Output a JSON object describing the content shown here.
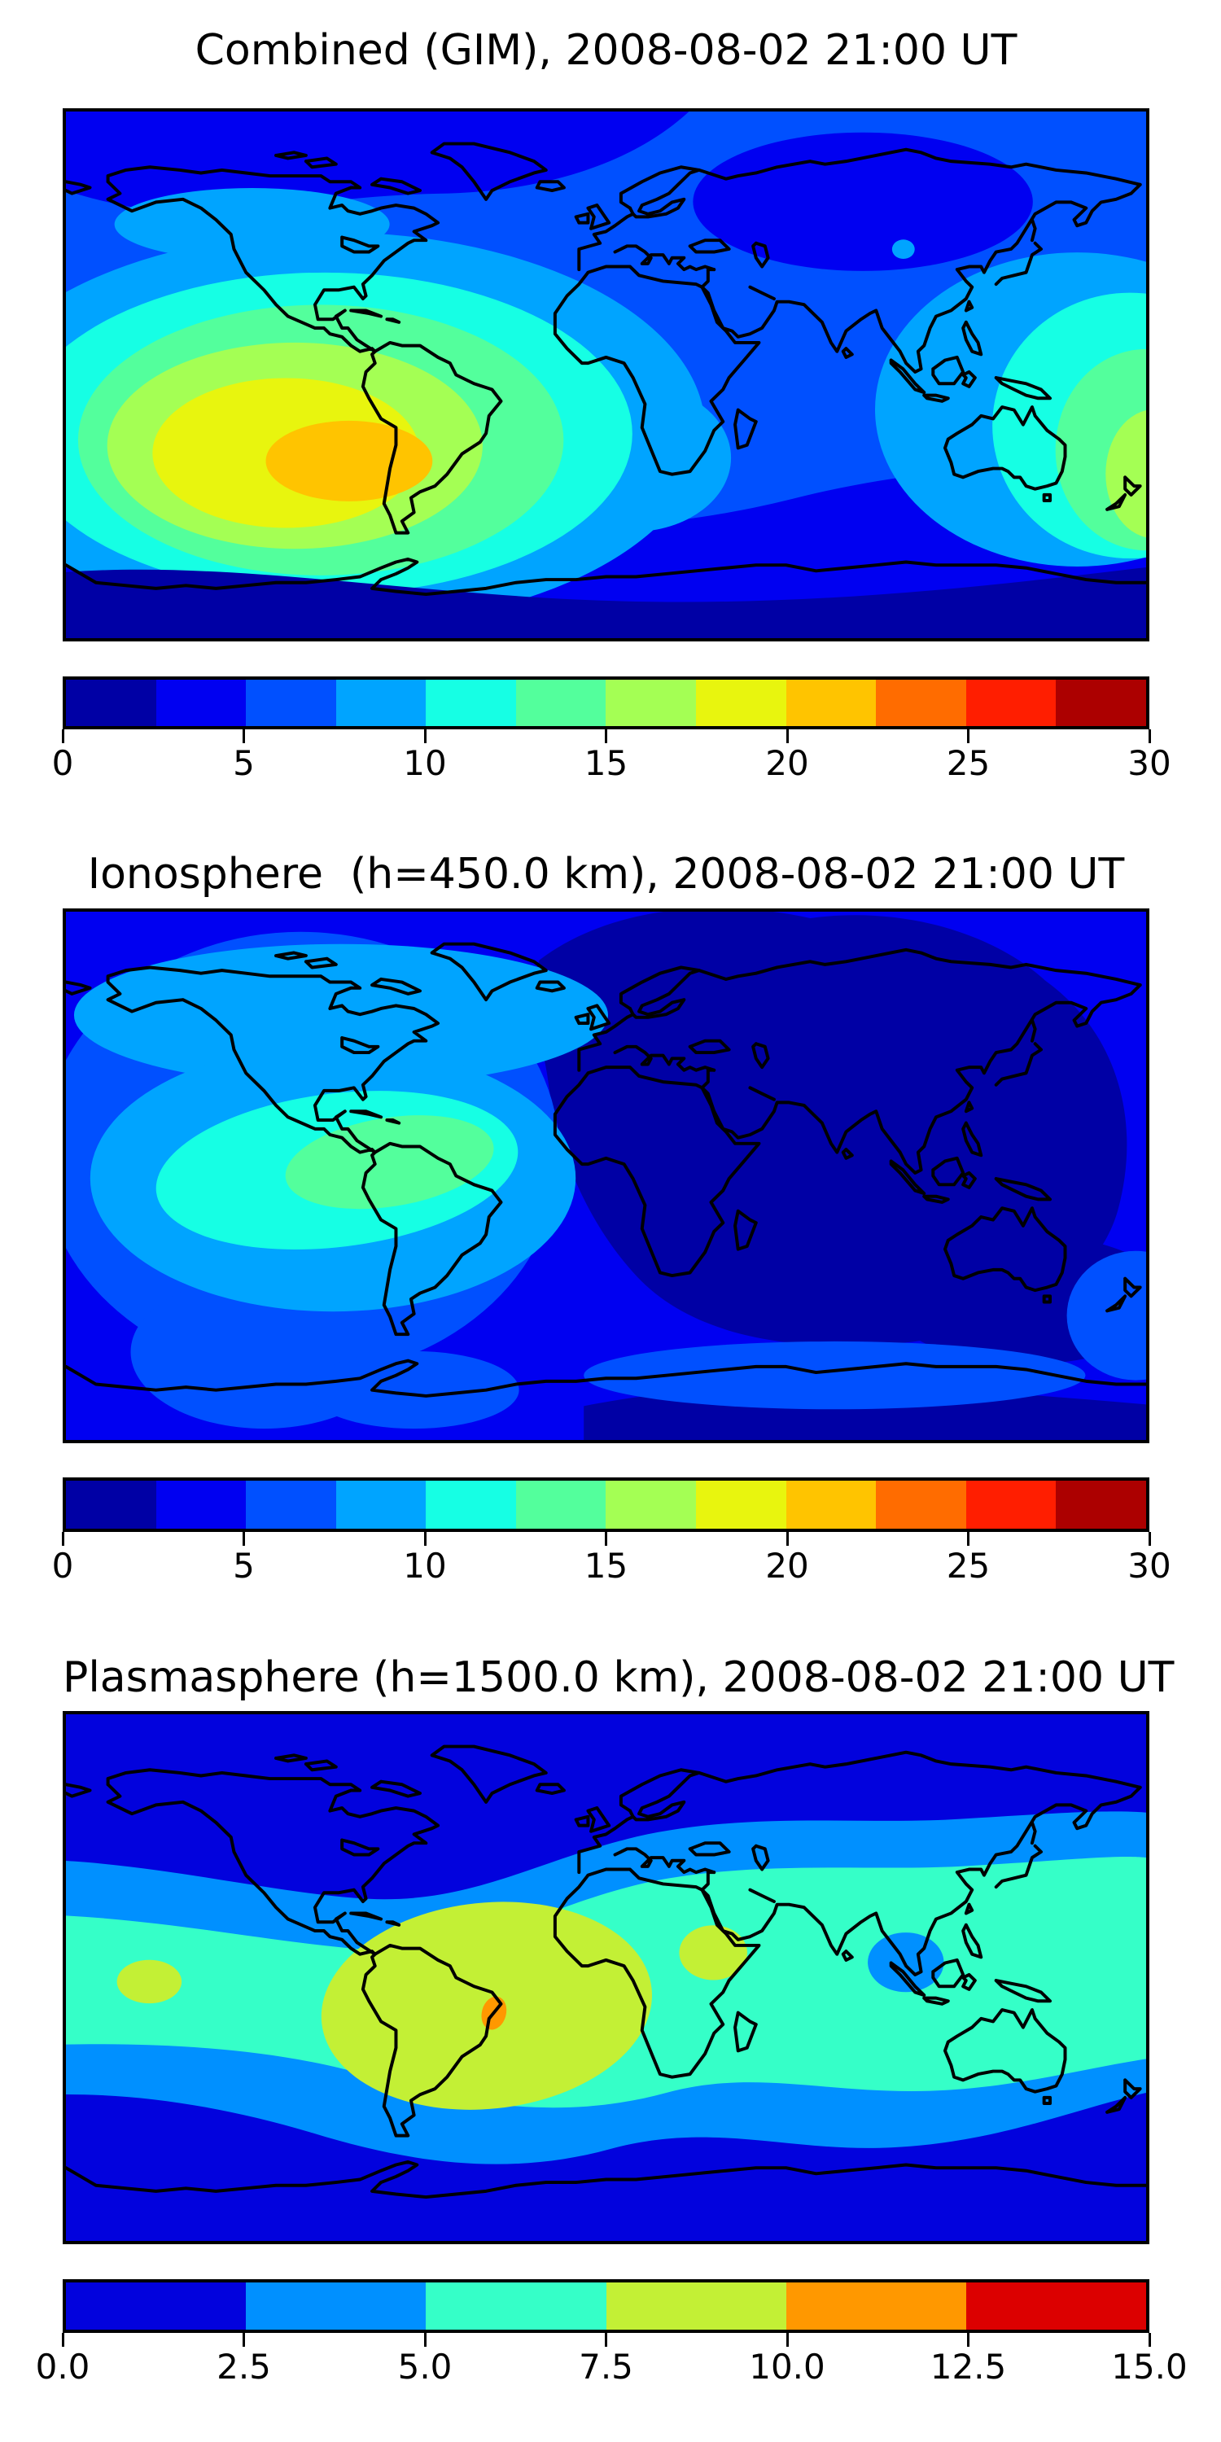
{
  "panels": [
    {
      "title": "Combined (GIM), 2008-08-02 21:00 UT",
      "colorbar": {
        "vmin": 0,
        "vmax": 30,
        "n_bands": 12,
        "tick_labels": [
          "0",
          "5",
          "10",
          "15",
          "20",
          "25",
          "30"
        ],
        "band_colors": [
          "#0000a5",
          "#0000f1",
          "#0050ff",
          "#00a4ff",
          "#16ffe4",
          "#53ff9c",
          "#a4ff54",
          "#e8f50e",
          "#ffc400",
          "#ff6c00",
          "#ff1e00",
          "#ac0000"
        ]
      }
    },
    {
      "title": "Ionosphere  (h=450.0 km), 2008-08-02 21:00 UT",
      "colorbar": {
        "vmin": 0,
        "vmax": 30,
        "n_bands": 12,
        "tick_labels": [
          "0",
          "5",
          "10",
          "15",
          "20",
          "25",
          "30"
        ],
        "band_colors": [
          "#0000a5",
          "#0000f1",
          "#0050ff",
          "#00a4ff",
          "#16ffe4",
          "#53ff9c",
          "#a4ff54",
          "#e8f50e",
          "#ffc400",
          "#ff6c00",
          "#ff1e00",
          "#ac0000"
        ]
      }
    },
    {
      "title": "Plasmasphere (h=1500.0 km), 2008-08-02 21:00 UT",
      "colorbar": {
        "vmin": 0,
        "vmax": 15,
        "n_bands": 6,
        "tick_labels": [
          "0.0",
          "2.5",
          "5.0",
          "7.5",
          "10.0",
          "12.5",
          "15.0"
        ],
        "band_colors": [
          "#0202dd",
          "#0090ff",
          "#35ffc8",
          "#c3f035",
          "#ff9800",
          "#dc0000"
        ]
      }
    }
  ],
  "chart_data": [
    {
      "type": "heatmap",
      "subtype": "filled-contour-world-map",
      "title": "Combined (GIM), 2008-08-02 21:00 UT",
      "projection": "equirectangular",
      "lon_range": [
        -180,
        180
      ],
      "lat_range": [
        -90,
        90
      ],
      "colormap": "jet (discrete, 12 bands)",
      "contour_levels": [
        0,
        2.5,
        5,
        7.5,
        10,
        12.5,
        15,
        17.5,
        20,
        22.5,
        25,
        27.5,
        30
      ],
      "colorbar_ticks": [
        0,
        5,
        10,
        15,
        20,
        25,
        30
      ],
      "legend_position": "horizontal colorbar below map",
      "grid": false,
      "features": [
        {
          "region": "eastern Pacific / Peru-Ecuador sector",
          "lon": -100,
          "lat": -10,
          "value_range": "20-22.5",
          "description": "main daytime hotspot: orange core ringed by yellow (17.5-20), yellow-green (15-17.5), green (12.5-15), cyan (10-12.5) and light blue (7.5-10)"
        },
        {
          "region": "far west Pacific near 180 deg (map edges)",
          "lon": 175,
          "lat": -15,
          "value_range": "15-17.5 max",
          "description": "secondary enhancement with cyan/green rings near both left and right map edges"
        },
        {
          "region": "Siberia / high-latitude Russia",
          "lon": 85,
          "lat": 60,
          "value_range": "2.5-5",
          "description": "dark-blue depleted oval"
        },
        {
          "region": "most of Eurasia and Africa",
          "lon": 40,
          "lat": 20,
          "value_range": "5-7.5",
          "description": "background level"
        },
        {
          "region": "southern high latitudes / Antarctica",
          "lon": 0,
          "lat": -70,
          "value_range": "0-5",
          "description": "dark blue and navy bands across the bottom of the map"
        }
      ]
    },
    {
      "type": "heatmap",
      "subtype": "filled-contour-world-map",
      "title": "Ionosphere  (h=450.0 km), 2008-08-02 21:00 UT",
      "projection": "equirectangular",
      "lon_range": [
        -180,
        180
      ],
      "lat_range": [
        -90,
        90
      ],
      "colormap": "jet (discrete, 12 bands)",
      "contour_levels": [
        0,
        2.5,
        5,
        7.5,
        10,
        12.5,
        15,
        17.5,
        20,
        22.5,
        25,
        27.5,
        30
      ],
      "colorbar_ticks": [
        0,
        5,
        10,
        15,
        20,
        25,
        30
      ],
      "legend_position": "horizontal colorbar below map",
      "grid": false,
      "features": [
        {
          "region": "Caribbean / northwest South America",
          "lon": -72,
          "lat": 5,
          "value_range": "12.5-15",
          "description": "green core of the daytime ionospheric hotspot surrounded by cyan (10-12.5) and light blue (7.5-10)"
        },
        {
          "region": "North America / North Pacific / North Atlantic",
          "lon": -100,
          "lat": 55,
          "value_range": "7.5-10",
          "description": "light-blue arc across the top-left of the map"
        },
        {
          "region": "Europe, Africa, Asia, Indian Ocean, Australia",
          "lon": 60,
          "lat": 10,
          "value_range": "0-2.5",
          "description": "very large navy night-side depletion"
        },
        {
          "region": "rest of globe",
          "lon": -150,
          "lat": -40,
          "value_range": "2.5-5",
          "description": "blue background with 5-7.5 patches in the southern mid-latitudes"
        }
      ]
    },
    {
      "type": "heatmap",
      "subtype": "filled-contour-world-map",
      "title": "Plasmasphere (h=1500.0 km), 2008-08-02 21:00 UT",
      "projection": "equirectangular",
      "lon_range": [
        -180,
        180
      ],
      "lat_range": [
        -90,
        90
      ],
      "colormap": "jet (discrete, 6 bands)",
      "contour_levels": [
        0,
        2.5,
        5,
        7.5,
        10,
        12.5,
        15
      ],
      "colorbar_ticks": [
        0.0,
        2.5,
        5.0,
        7.5,
        10.0,
        12.5,
        15.0
      ],
      "legend_position": "horizontal colorbar below map",
      "grid": false,
      "features": [
        {
          "region": "equatorial belt all longitudes",
          "lon": 0,
          "lat": 0,
          "value_range": "5-7.5",
          "description": "broad turquoise plasmaspheric belt between roughly +/-35 deg latitude, bordered by wavy light-blue (2.5-5) transition bands"
        },
        {
          "region": "Brazil / central South America",
          "lon": -44,
          "lat": -10,
          "value_range": "7.5-10",
          "description": "large yellow-green enhancement"
        },
        {
          "region": "east coast of Brazil",
          "lon": -37,
          "lat": -12,
          "value_range": "10-12.5",
          "description": "small orange peak"
        },
        {
          "region": "central Africa (Chad sector)",
          "lon": 20,
          "lat": 8,
          "value_range": "7.5-10",
          "description": "small yellow-green spot"
        },
        {
          "region": "eastern Pacific near map edge",
          "lon": -152,
          "lat": -1,
          "value_range": "7.5-10",
          "description": "tiny yellow-green spot"
        },
        {
          "region": "Malay Peninsula / Borneo",
          "lon": 100,
          "lat": 5,
          "value_range": "2.5-5",
          "description": "localized light-blue dip inside the turquoise belt"
        },
        {
          "region": "polar caps",
          "lon": 0,
          "lat": 70,
          "value_range": "0-2.5",
          "description": "blue background at high northern and southern latitudes"
        }
      ]
    }
  ]
}
